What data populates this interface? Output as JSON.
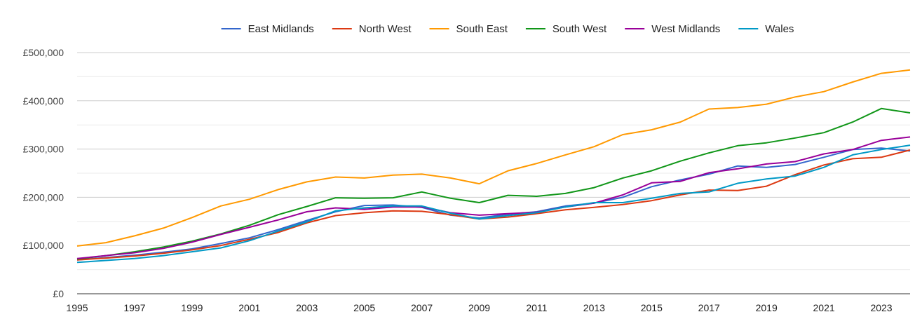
{
  "chart_data": {
    "type": "line",
    "title": "",
    "xlabel": "",
    "ylabel": "",
    "legend_position": "top",
    "grid": true,
    "x": [
      1995,
      1996,
      1997,
      1998,
      1999,
      2000,
      2001,
      2002,
      2003,
      2004,
      2005,
      2006,
      2007,
      2008,
      2009,
      2010,
      2011,
      2012,
      2013,
      2014,
      2015,
      2016,
      2017,
      2018,
      2019,
      2020,
      2021,
      2022,
      2023,
      2024
    ],
    "xlim": [
      1995,
      2024
    ],
    "ylim": [
      0,
      500000
    ],
    "x_ticks": [
      "1995",
      "1997",
      "1999",
      "2001",
      "2003",
      "2005",
      "2007",
      "2009",
      "2011",
      "2013",
      "2015",
      "2017",
      "2019",
      "2021",
      "2023"
    ],
    "x_tick_values": [
      1995,
      1997,
      1999,
      2001,
      2003,
      2005,
      2007,
      2009,
      2011,
      2013,
      2015,
      2017,
      2019,
      2021,
      2023
    ],
    "y_ticks": [
      "£0",
      "£100,000",
      "£200,000",
      "£300,000",
      "£400,000",
      "£500,000"
    ],
    "y_tick_values": [
      0,
      100000,
      200000,
      300000,
      400000,
      500000
    ],
    "series": [
      {
        "name": "East Midlands",
        "color": "#3366cc",
        "values": [
          70000,
          75000,
          80000,
          86000,
          93000,
          104000,
          116000,
          133000,
          152000,
          170000,
          183000,
          184000,
          179000,
          163000,
          157000,
          165000,
          170000,
          182000,
          188000,
          200000,
          222000,
          236000,
          248000,
          265000,
          262000,
          268000,
          283000,
          299000,
          302000,
          296000
        ]
      },
      {
        "name": "North West",
        "color": "#dc3912",
        "values": [
          70000,
          74000,
          78000,
          84000,
          91000,
          100000,
          113000,
          127000,
          147000,
          162000,
          168000,
          172000,
          171000,
          164000,
          155000,
          159000,
          166000,
          174000,
          179000,
          185000,
          193000,
          205000,
          215000,
          214000,
          223000,
          247000,
          267000,
          280000,
          283000,
          298000
        ]
      },
      {
        "name": "South East",
        "color": "#ff9900",
        "values": [
          99000,
          106000,
          120000,
          136000,
          158000,
          182000,
          196000,
          216000,
          232000,
          242000,
          240000,
          246000,
          248000,
          240000,
          228000,
          255000,
          270000,
          288000,
          305000,
          330000,
          340000,
          356000,
          383000,
          386000,
          393000,
          408000,
          419000,
          439000,
          457000,
          464000
        ]
      },
      {
        "name": "South West",
        "color": "#109618",
        "values": [
          72000,
          79000,
          87000,
          97000,
          109000,
          124000,
          142000,
          164000,
          181000,
          199000,
          198000,
          199000,
          211000,
          198000,
          189000,
          204000,
          202000,
          208000,
          220000,
          240000,
          255000,
          275000,
          292000,
          307000,
          313000,
          323000,
          334000,
          356000,
          384000,
          375000
        ]
      },
      {
        "name": "West Midlands",
        "color": "#990099",
        "values": [
          73000,
          79000,
          85000,
          94000,
          107000,
          123000,
          138000,
          153000,
          170000,
          178000,
          175000,
          180000,
          180000,
          168000,
          163000,
          166000,
          169000,
          180000,
          188000,
          205000,
          230000,
          233000,
          251000,
          259000,
          269000,
          274000,
          290000,
          299000,
          318000,
          325000
        ]
      },
      {
        "name": "Wales",
        "color": "#0099c6",
        "values": [
          65000,
          69000,
          73000,
          79000,
          87000,
          95000,
          110000,
          130000,
          149000,
          172000,
          178000,
          182000,
          182000,
          167000,
          155000,
          162000,
          168000,
          180000,
          189000,
          189000,
          198000,
          208000,
          211000,
          229000,
          238000,
          244000,
          262000,
          288000,
          299000,
          308000
        ]
      }
    ]
  }
}
